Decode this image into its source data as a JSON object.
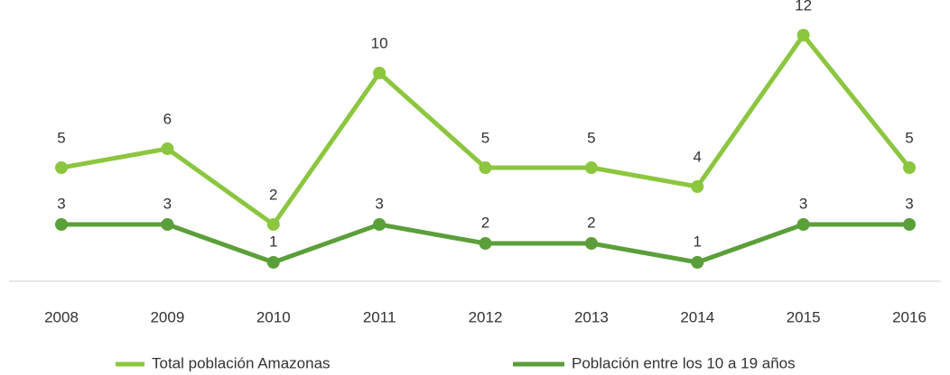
{
  "chart_data": {
    "type": "line",
    "categories": [
      "2008",
      "2009",
      "2010",
      "2011",
      "2012",
      "2013",
      "2014",
      "2015",
      "2016"
    ],
    "series": [
      {
        "name": "Total población Amazonas",
        "color": "#8cc63f",
        "axis": "y2",
        "values": [
          5,
          6,
          2,
          10,
          5,
          5,
          4,
          12,
          5
        ]
      },
      {
        "name": "Población entre los 10 a 19 años",
        "color": "#5b9f3a",
        "values": [
          3,
          3,
          1,
          3,
          2,
          2,
          1,
          3,
          3
        ]
      }
    ],
    "ylim": [
      0,
      14
    ],
    "y2lim": [
      -1,
      13
    ],
    "legend": "bottom"
  }
}
